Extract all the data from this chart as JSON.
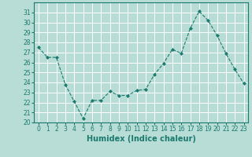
{
  "x": [
    0,
    1,
    2,
    3,
    4,
    5,
    6,
    7,
    8,
    9,
    10,
    11,
    12,
    13,
    14,
    15,
    16,
    17,
    18,
    19,
    20,
    21,
    22,
    23
  ],
  "y": [
    27.5,
    26.5,
    26.5,
    23.8,
    22.1,
    20.4,
    22.2,
    22.2,
    23.1,
    22.7,
    22.7,
    23.2,
    23.3,
    24.8,
    25.9,
    27.3,
    26.9,
    29.4,
    31.1,
    30.2,
    28.7,
    26.9,
    25.3,
    23.9
  ],
  "xlabel": "Humidex (Indice chaleur)",
  "ylim": [
    20,
    32
  ],
  "xlim": [
    -0.5,
    23.5
  ],
  "yticks": [
    20,
    21,
    22,
    23,
    24,
    25,
    26,
    27,
    28,
    29,
    30,
    31
  ],
  "xticks": [
    0,
    1,
    2,
    3,
    4,
    5,
    6,
    7,
    8,
    9,
    10,
    11,
    12,
    13,
    14,
    15,
    16,
    17,
    18,
    19,
    20,
    21,
    22,
    23
  ],
  "line_color": "#1a7a6e",
  "marker_color": "#1a7a6e",
  "bg_color": "#b8ddd6",
  "grid_color": "#ffffff",
  "xlabel_fontsize": 7,
  "tick_fontsize": 5.5
}
